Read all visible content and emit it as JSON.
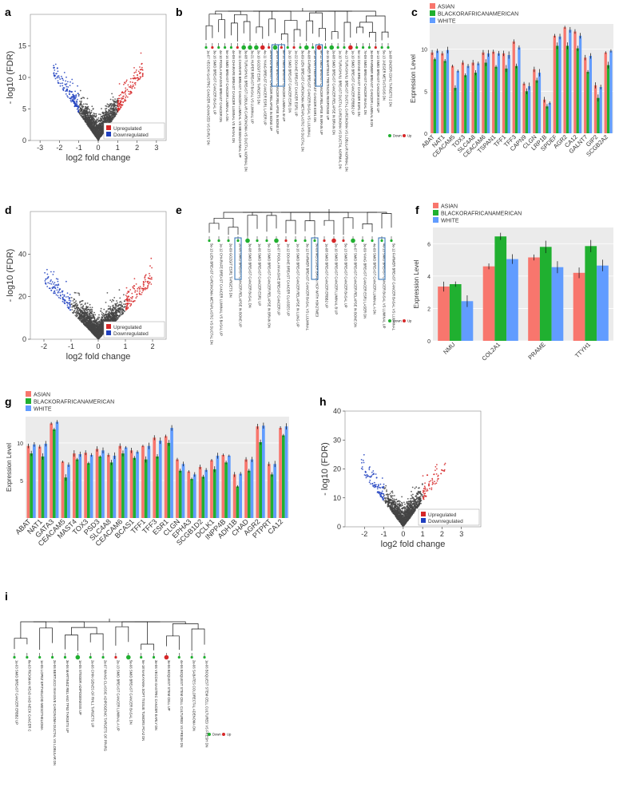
{
  "figure": {
    "panel_letters": [
      "a",
      "b",
      "c",
      "d",
      "e",
      "f",
      "g",
      "h",
      "i"
    ],
    "colors": {
      "up": "#d62728",
      "down": "#1f3fbf",
      "ns": "#444444",
      "asian": "#f8766d",
      "black": "#20b030",
      "white": "#619cff",
      "highlight_box": "#2b6cb0"
    },
    "legend": {
      "upregulated": "Upregulated",
      "downregulated": "Downregulated",
      "down": "Down",
      "up": "Up",
      "asian": "ASIAN",
      "black": "BLACKORAFRICANAMERICAN",
      "white": "WHITE"
    }
  },
  "chart_data": [
    {
      "id": "a",
      "type": "scatter",
      "xlabel": "log2 fold change",
      "ylabel": "- log10 (FDR)",
      "xlim": [
        -3.5,
        3.5
      ],
      "ylim": [
        0,
        20
      ],
      "xticks": [
        -3,
        -2,
        -1,
        0,
        1,
        2,
        3
      ],
      "yticks": [
        0,
        5,
        10,
        15
      ],
      "legend": [
        "Upregulated",
        "Downregulated"
      ]
    },
    {
      "id": "d",
      "type": "scatter",
      "xlabel": "log2 fold change",
      "ylabel": "- log10 (FDR)",
      "xlim": [
        -2.5,
        2.5
      ],
      "ylim": [
        0,
        60
      ],
      "xticks": [
        -2,
        -1,
        0,
        1,
        2
      ],
      "yticks": [
        0,
        20,
        40
      ],
      "legend": [
        "Upregulated",
        "Downregulated"
      ]
    },
    {
      "id": "h",
      "type": "scatter",
      "xlabel": "log2 fold change",
      "ylabel": "- log10 (FDR)",
      "xlim": [
        -3,
        4
      ],
      "ylim": [
        0,
        40
      ],
      "xticks": [
        -2,
        -1,
        0,
        1,
        2,
        3
      ],
      "yticks": [
        0,
        10,
        20,
        30,
        40
      ],
      "legend": [
        "Upregulated",
        "Downregulated"
      ]
    },
    {
      "id": "c",
      "type": "bar",
      "ylabel": "Expression Level",
      "ylim": [
        0,
        13
      ],
      "yticks": [
        0,
        5,
        10
      ],
      "categories": [
        "ABAT",
        "NAT1",
        "CEACAM5",
        "TOX3",
        "SLC4A8",
        "CEACAM6",
        "TSPAN1",
        "TFF1",
        "TFF3",
        "CAPN9",
        "CLGN",
        "LRP1B",
        "SPDEF",
        "AGR2",
        "CA12",
        "GALNT7",
        "GIP2",
        "SCGB2A2"
      ],
      "series": [
        {
          "name": "ASIAN",
          "values": [
            9.6,
            9.5,
            8.0,
            8.4,
            8.4,
            9.6,
            9.7,
            9.5,
            10.9,
            5.9,
            7.6,
            4.0,
            11.6,
            12.6,
            12.1,
            9.0,
            5.7,
            9.6
          ]
        },
        {
          "name": "BLACKORAFRICANAMERICAN",
          "values": [
            8.8,
            8.6,
            5.4,
            6.9,
            7.2,
            8.4,
            7.9,
            7.7,
            8.0,
            5.0,
            6.3,
            3.2,
            10.4,
            10.4,
            10.1,
            7.3,
            4.2,
            8.1
          ]
        },
        {
          "name": "WHITE",
          "values": [
            9.8,
            9.9,
            7.4,
            8.0,
            8.3,
            9.5,
            9.5,
            9.3,
            10.2,
            5.6,
            7.2,
            3.6,
            11.5,
            12.3,
            11.6,
            9.2,
            5.5,
            9.8
          ]
        }
      ]
    },
    {
      "id": "f",
      "type": "bar",
      "ylabel": "Expression Level",
      "ylim": [
        0,
        7
      ],
      "yticks": [
        0,
        2,
        4,
        6
      ],
      "categories": [
        "NMU",
        "COL2A1",
        "PRAME",
        "TTYH1"
      ],
      "series": [
        {
          "name": "ASIAN",
          "values": [
            3.35,
            4.6,
            5.15,
            4.2
          ]
        },
        {
          "name": "BLACKORAFRICANAMERICAN",
          "values": [
            3.5,
            6.45,
            5.8,
            5.85
          ]
        },
        {
          "name": "WHITE",
          "values": [
            2.45,
            5.05,
            4.55,
            4.65
          ]
        }
      ]
    },
    {
      "id": "g",
      "type": "bar",
      "ylabel": "Expression Level",
      "ylim": [
        0,
        13.5
      ],
      "yticks": [
        5,
        10
      ],
      "categories": [
        "ABAT",
        "NAT1",
        "GATA3",
        "CEACAM5",
        "MAST4",
        "TOX3",
        "PSD3",
        "SLC4A8",
        "CEACAM6",
        "BCAS1",
        "TFF1",
        "TFF3",
        "ESR1",
        "CLGN",
        "EPHA3",
        "SCGB1D2",
        "DCLK1",
        "INPP4B",
        "ADH1B",
        "CHAD",
        "AGR2",
        "PTPRT",
        "CA12"
      ],
      "series": [
        {
          "name": "ASIAN",
          "values": [
            9.6,
            9.5,
            12.6,
            7.5,
            8.6,
            8.7,
            9.2,
            8.4,
            9.6,
            9.0,
            9.6,
            10.7,
            10.9,
            7.8,
            6.2,
            6.8,
            7.7,
            8.4,
            5.8,
            7.8,
            12.2,
            7.2,
            12.0
          ]
        },
        {
          "name": "BLACKORAFRICANAMERICAN",
          "values": [
            8.6,
            8.2,
            11.8,
            5.4,
            7.8,
            7.3,
            8.2,
            7.4,
            8.6,
            8.0,
            7.8,
            8.2,
            10.0,
            6.3,
            5.2,
            5.5,
            6.5,
            7.4,
            4.2,
            6.3,
            10.1,
            5.8,
            11.0
          ]
        },
        {
          "name": "WHITE",
          "values": [
            9.8,
            9.9,
            12.8,
            7.1,
            8.5,
            8.4,
            9.0,
            8.3,
            9.4,
            8.8,
            9.6,
            10.3,
            12.0,
            7.2,
            5.8,
            6.4,
            8.3,
            8.3,
            5.9,
            7.8,
            12.3,
            7.2,
            12.2
          ]
        }
      ]
    }
  ],
  "trees": {
    "b": [
      "1e-07 VECCHI GASTRIC CANCER ADVANCED VS EARLY DN",
      "3e-16 SMID BREAST CANCER BASAL UP",
      "4e-10 POOLA INVASIVE BREAST CANCER DN",
      "5e-16 SMID BREAST CANCER LUMINAL A DN",
      "4e-09 CHARAFE BREAST CANCER LUMINAL VS BASAL DN",
      "2e-11 CHARAFE BREAST CANCER LUMINAL VS MESENCHYMAL UP",
      "3e-08 TURASHVILI BREAST LOBULAR CARCINOMA VS DUCTAL NORMAL DN",
      "3e-21 HUPER BREAST BASAL VS LUMINAL UP",
      "2e-10 GOZGIT ESR1 TARGETS DN",
      "4e-11 YANG BREAST CANCER ESR1 LASER UP",
      "2e-09 LIU BREAST CANCER RELAPSE IN BONE UP",
      "3e-09 SMID BREAST CANCER RELAPSE IN BONE UP",
      "8e-14 SMID BREAST CANCER LUMINAL B UP",
      "2e-10 SMID BREAST CANCER ESR1 DN",
      "1e-22 DOANE BREAST CANCER ESR1 UP",
      "3e-09 LIEN BREAST CARCINOMA METAPLASTIC VS DUCTAL DN",
      "4e-08 FARMER BREAST CANCER BASAL VS LULMINAL",
      "2e-18 VANTVEER BREAST CANCER ESR1 DN",
      "9e-12 SMID BREAST CANCER RELAPSE IN BRAIN UP",
      "4e-15 MARTENS TRETINOIN RESPONSE UP",
      "2e-08 SMID BREAST CANCER RELAPSE IN BRAIN DN",
      "1e-10 TURASHVILI BREAST DUCTAL CARCINOMA VS DUCTAL NORMAL DN",
      "4e-13 TURASHVILI BREAST DUCTAL CARCINOMA VS LOBULAR NORMAL DN",
      "1e-10 SMID BREAST CANCER ERBB2 UP",
      "5e-14 DOANE BREAST CANCER ESR1 DN",
      "7e-09 SMID BREAST CANCER BASAL DN",
      "3e-09 FARMER BREAST CANCER LUMINAL B DN",
      "1e-13 SMID BREAST CANCER ESR1 UP",
      "5e-13 JAEGER METASTASIS DN",
      "1e-08 ONDER CDH1 TARGETS 2 DN"
    ],
    "e": [
      "5e-13 LIEN BREAST CARCINOMA METAPLASTIC VS DUCTAL DN",
      "1e-12 CHARAFE BREAST CANCER LUMINAL VS BASAL UP",
      "2e-09 GOZGIT ESR1 TARGETS DN",
      "2e-06 SMID BREAST CANCER RELAPSE IN BONE UP",
      "3e-08 SMID BREAST CANCER BASAL DN",
      "1e-06 SMID BREAST CANCER ESR1 UP",
      "5e-13 SMID BREAST CANCER RELAPSE IN BRAIN DN",
      "1e-07 POOLA INVASIVE BREAST CANCER UP",
      "1e-12 DOANE BREAST CANCER CLASSES UP",
      "1e-16 SMID BREAST CANCER RELAPSE IN LUNG UP",
      "3e-12 FARMER BREAST CANCER BASAL VS LULMINAL",
      "5e-09 MEISSNER BRAIN HCP WITH H3K27ME3",
      "1e-08 SMID BREAST CANCER ERBB2 UP",
      "2e-10 SMID BREAST CANCER LUMINAL B UP",
      "5e-13 SMID BREAST CANCER BASAL UP",
      "2e-07 SMID BREAST CANCER RELAPSE IN BONE DN",
      "3e-09 YANG BREAST CANCER ESR1 LASER DN",
      "4e-09 SMID BREAST CANCER LUMINAL A DN",
      "4e-13 SMID BREAST CANCER BASAL VS LUMINAL UP",
      "5e-12 FARMER BREAST CANCER BASAL VS LULMINAL"
    ],
    "i": [
      "1e-03 SMID BREAST CANCER ERBB2 UP",
      "8e-03 RICKMAN HEAD AND NECK CANCER C",
      "1e-05 LOPEZ EPITHELIOID MESOTHELIOMA",
      "2e-06 BERTUCCI INVASIVE CARCINOMA DUCTAL VS LOBULAR DN",
      "3e-06 MARTINEZ RB1 AND TP53 TARGETS UP",
      "1e-05 STEGER ADIPOGENESIS UP",
      "2e-06 CHIN GENES OF RHL1 TARGETS UP",
      "2e-07 WANG CLASSIC ADIPOGENIC TARGETS OF PPARG",
      "2e-13 SMID BREAST CANCER LUMINAL A UP",
      "5e-06 SMID BREAST CANCER BASAL DN",
      "5e-18 NAKAYAMA SOFT TISSUE TUMORS PCA2 DN",
      "3e-06 VECCHI GASTRIC CANCER EARLY DN",
      "3e-06 BOQUEST STEM CELL UP",
      "4e-06 BOQUEST STEM CELL CULTURED VS FRESH DN",
      "2e-06 SABATES COLORECTAL ADENOMA DN",
      "1e-06 BOQUEST STEM CELL CULTURED VS FRESH DN"
    ]
  }
}
